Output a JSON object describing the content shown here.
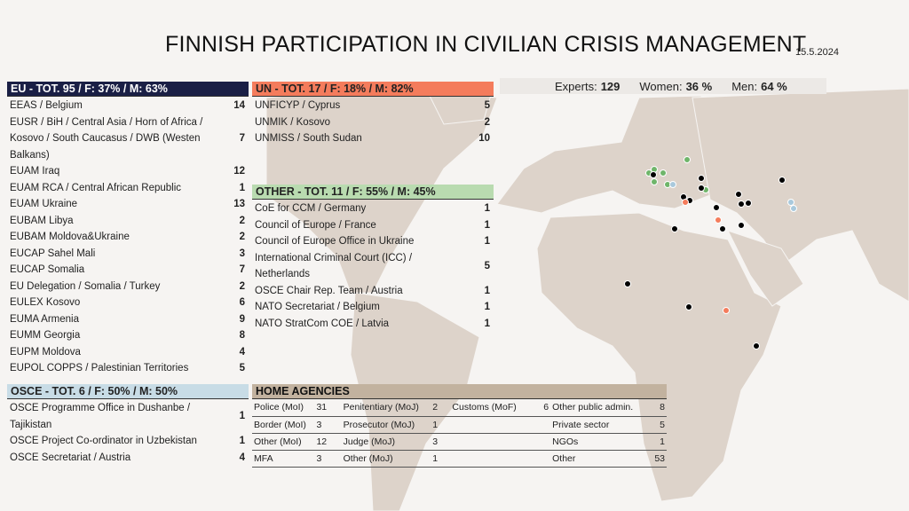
{
  "title": "FINNISH PARTICIPATION IN CIVILIAN CRISIS MANAGEMENT",
  "date": "15.5.2024",
  "stats": {
    "experts_label": "Experts:",
    "experts": "129",
    "women_label": "Women:",
    "women": "36 %",
    "men_label": "Men:",
    "men": "64 %"
  },
  "colors": {
    "eu": "#1a1f45",
    "un": "#f47c5c",
    "other": "#b9dbb0",
    "osce": "#c8dce6",
    "home": "#c2b29f",
    "land": "#ddd3ca"
  },
  "eu": {
    "header": "EU - TOT. 95 / F: 37% / M: 63%",
    "rows": [
      {
        "name": "EEAS / Belgium",
        "value": "14"
      },
      {
        "name": "EUSR / BiH / Central Asia / Horn of Africa / Kosovo / South Caucasus / DWB (Westen Balkans)",
        "value": "7"
      },
      {
        "name": "EUAM Iraq",
        "value": "12"
      },
      {
        "name": "EUAM RCA / Central African Republic",
        "value": "1"
      },
      {
        "name": "EUAM Ukraine",
        "value": "13"
      },
      {
        "name": "EUBAM Libya",
        "value": "2"
      },
      {
        "name": "EUBAM Moldova&Ukraine",
        "value": "2"
      },
      {
        "name": "EUCAP Sahel Mali",
        "value": "3"
      },
      {
        "name": "EUCAP Somalia",
        "value": "7"
      },
      {
        "name": "EU Delegation / Somalia / Turkey",
        "value": "2"
      },
      {
        "name": "EULEX Kosovo",
        "value": "6"
      },
      {
        "name": "EUMA Armenia",
        "value": "9"
      },
      {
        "name": "EUMM Georgia",
        "value": "8"
      },
      {
        "name": "EUPM Moldova",
        "value": "4"
      },
      {
        "name": "EUPOL COPPS / Palestinian Territories",
        "value": "5"
      }
    ]
  },
  "un": {
    "header": "UN - TOT. 17 / F: 18% / M: 82%",
    "rows": [
      {
        "name": "UNFICYP / Cyprus",
        "value": "5"
      },
      {
        "name": "UNMIK / Kosovo",
        "value": "2"
      },
      {
        "name": "UNMISS / South Sudan",
        "value": "10"
      }
    ]
  },
  "other": {
    "header": "OTHER - TOT. 11 / F: 55% / M: 45%",
    "rows": [
      {
        "name": "CoE for CCM / Germany",
        "value": "1"
      },
      {
        "name": "Council of Europe / France",
        "value": "1"
      },
      {
        "name": "Council of Europe Office in Ukraine",
        "value": "1"
      },
      {
        "name": "International Criminal Court (ICC) / Netherlands",
        "value": "5"
      },
      {
        "name": "OSCE Chair Rep. Team / Austria",
        "value": "1"
      },
      {
        "name": "NATO Secretariat / Belgium",
        "value": "1"
      },
      {
        "name": "NATO StratCom COE / Latvia",
        "value": "1"
      }
    ]
  },
  "osce": {
    "header": "OSCE - TOT. 6 / F: 50% / M: 50%",
    "rows": [
      {
        "name": "OSCE Programme Office in Dushanbe / Tajikistan",
        "value": "1"
      },
      {
        "name": "OSCE Project Co-ordinator in Uzbekistan",
        "value": "1"
      },
      {
        "name": "OSCE Secretariat / Austria",
        "value": "4"
      }
    ]
  },
  "home": {
    "header": "HOME AGENCIES",
    "rows": [
      [
        "Police (MoI)",
        "31",
        "Penitentiary (MoJ)",
        "2",
        "Customs (MoF)",
        "6",
        "Other public admin.",
        "8"
      ],
      [
        "Border (MoI)",
        "3",
        "Prosecutor (MoJ)",
        "1",
        "",
        "",
        "Private sector",
        "5"
      ],
      [
        "Other (MoI)",
        "12",
        "Judge (MoJ)",
        "3",
        "",
        "",
        "NGOs",
        "1"
      ],
      [
        "MFA",
        "3",
        "Other (MoJ)",
        "1",
        "",
        "",
        "Other",
        "53"
      ]
    ]
  }
}
